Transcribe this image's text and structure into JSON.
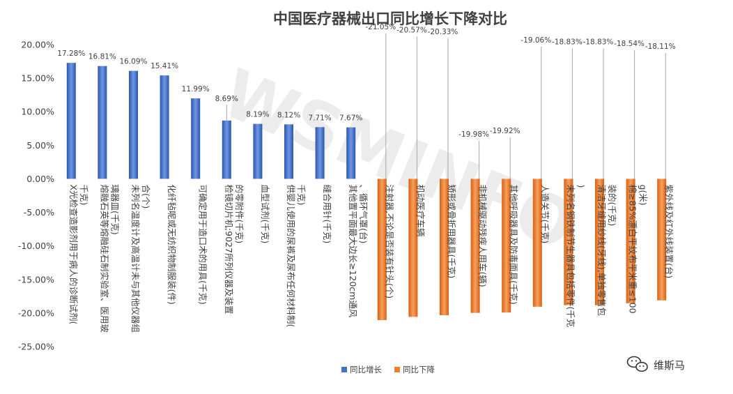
{
  "chart_data": {
    "type": "bar",
    "title": "中国医疗器械出口同比增长下降对比",
    "ylim": [
      -25,
      20
    ],
    "yticks": [
      20,
      15,
      10,
      5,
      0,
      -5,
      -10,
      -15,
      -20,
      -25
    ],
    "ytick_labels": [
      "20.00%",
      "15.00%",
      "10.00%",
      "5.00%",
      "0.00%",
      "-5.00%",
      "-10.00%",
      "-15.00%",
      "-20.00%",
      "-25.00%"
    ],
    "grid": false,
    "legend_position": "bottom",
    "categories": [
      "X光检查造影剂用于病人的诊断试剂(千克)",
      "熔融石英等熔融硅石制实验室、医用玻璃器皿(千克)",
      "未列名温度计及高温计未与其他仪器组合(个)",
      "化纤毡呢或无纺织物制服装(件)",
      "可确定用于造口术的用具(千克)",
      "检镜切片机;9027所列仪器及装置的零附件(千克)",
      "血型试剂(千克)",
      "供婴儿使用的尿裤及尿布任何材料制(千克)",
      "缝合用针(千克)",
      "其他置平面最大边长≥120cm通风、循环气罩(台)",
      "注射器,不论是否装有针头(个)",
      "机动医疗车辆",
      "矫形或骨折用器具(千克)",
      "非机械驱动残疾人用车(辆)",
      "其他呼吸器具及防毒面具(千克)",
      "人造关节(千克)",
      "未列名钢铁制节生器具包括零件(千克)",
      "清洁牙缝用纱线(牙线),单独零售包装的(千克)",
      "棉≥85%漂白平纹布平米重≤100g(米)",
      "紫外线及红外线装置(台)"
    ],
    "series": [
      {
        "name": "同比增长",
        "color": "#4472c4",
        "values": [
          17.28,
          16.81,
          16.09,
          15.41,
          11.99,
          8.69,
          8.19,
          8.12,
          7.71,
          7.67,
          null,
          null,
          null,
          null,
          null,
          null,
          null,
          null,
          null,
          null
        ],
        "labels": [
          "17.28%",
          "16.81%",
          "16.09%",
          "15.41%",
          "11.99%",
          "8.69%",
          "8.19%",
          "8.12%",
          "7.71%",
          "7.67%",
          "",
          "",
          "",
          "",
          "",
          "",
          "",
          "",
          "",
          ""
        ]
      },
      {
        "name": "同比下降",
        "color": "#ed7d31",
        "values": [
          null,
          null,
          null,
          null,
          null,
          null,
          null,
          null,
          null,
          null,
          -21.05,
          -20.57,
          -20.33,
          -19.98,
          -19.92,
          -19.06,
          -18.83,
          -18.83,
          -18.54,
          -18.11
        ],
        "labels": [
          "",
          "",
          "",
          "",
          "",
          "",
          "",
          "",
          "",
          "",
          "-21.05%",
          "-20.57%",
          "-20.33%",
          "-19.98%",
          "-19.92%",
          "-19.06%",
          "-18.83%",
          "-18.83%",
          "-18.54%",
          "-18.11%"
        ]
      }
    ]
  },
  "watermark": {
    "text": "WSMINFO",
    "account": "维斯马"
  }
}
